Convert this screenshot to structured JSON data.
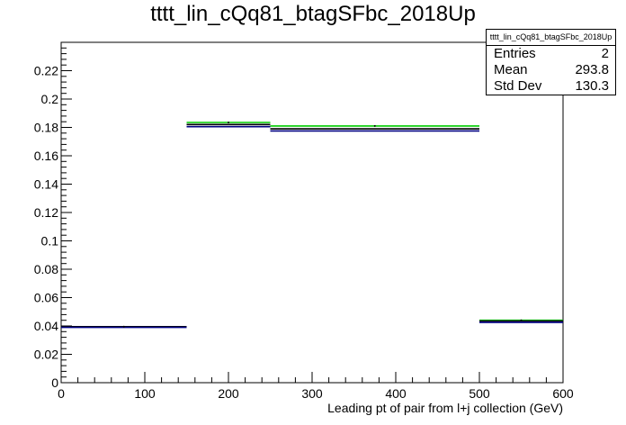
{
  "chart_data": {
    "type": "histogram",
    "title": "tttt_lin_cQq81_btagSFbc_2018Up",
    "xlabel": "Leading pt of pair from l+j collection (GeV)",
    "ylabel": "",
    "xlim": [
      0,
      600
    ],
    "ylim": [
      0,
      0.24
    ],
    "x_ticks": [
      0,
      100,
      200,
      300,
      400,
      500,
      600
    ],
    "y_ticks": [
      0,
      0.02,
      0.04,
      0.06,
      0.08,
      0.1,
      0.12,
      0.14,
      0.16,
      0.18,
      0.2,
      0.22
    ],
    "grid": false,
    "bins": [
      {
        "low": 0,
        "high": 150,
        "values": [
          0.0395,
          0.0395,
          0.039
        ]
      },
      {
        "low": 150,
        "high": 250,
        "values": [
          0.1835,
          0.182,
          0.1805
        ]
      },
      {
        "low": 250,
        "high": 500,
        "values": [
          0.181,
          0.179,
          0.1775
        ]
      },
      {
        "low": 500,
        "high": 600,
        "values": [
          0.044,
          0.0435,
          0.0425
        ]
      }
    ],
    "series": [
      {
        "color": "#00cc00"
      },
      {
        "color": "#000000"
      },
      {
        "color": "#000080"
      }
    ]
  },
  "stats": {
    "name": "tttt_lin_cQq81_btagSFbc_2018Up",
    "rows": [
      {
        "label": "Entries",
        "value": "2"
      },
      {
        "label": "Mean",
        "value": "293.8"
      },
      {
        "label": "Std Dev",
        "value": "130.3"
      }
    ]
  }
}
